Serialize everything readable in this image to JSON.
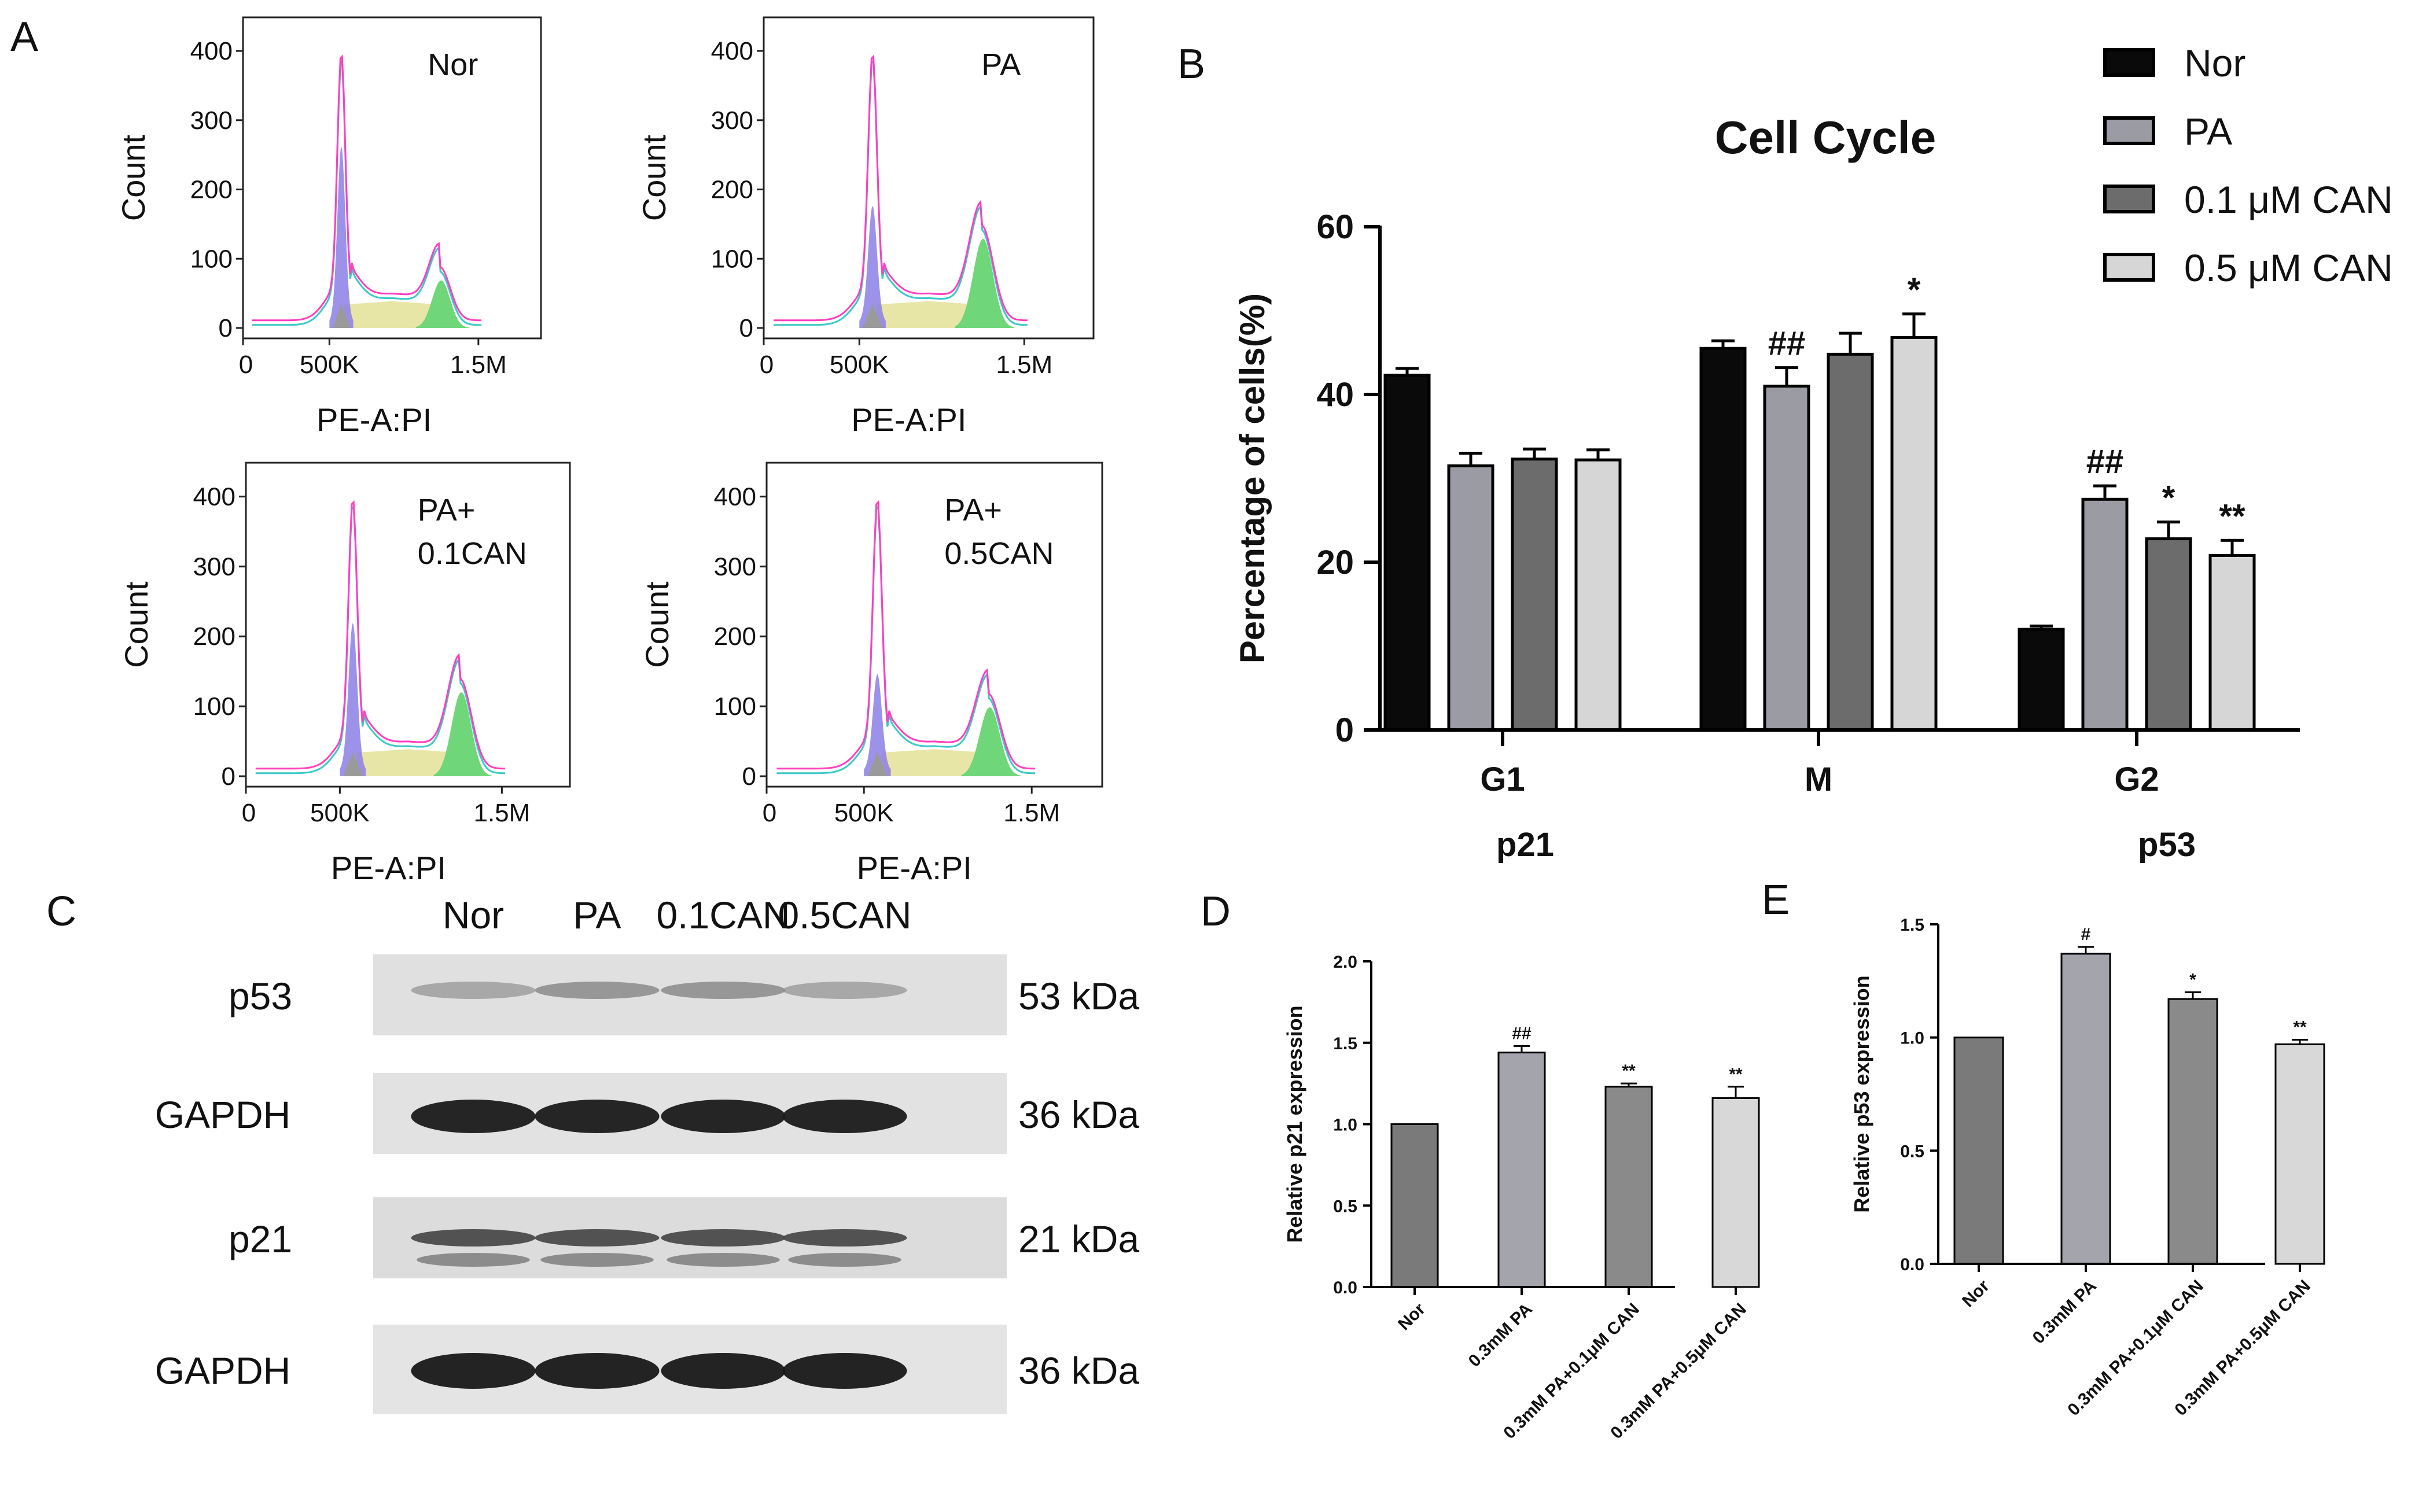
{
  "panel_letters": [
    "A",
    "B",
    "C",
    "D",
    "E"
  ],
  "flow_panels": {
    "ylabel": "Count",
    "xlabel": "PE-A:PI",
    "yticks": [
      "0",
      "100",
      "200",
      "300",
      "400"
    ],
    "xticks": [
      "0",
      "500K",
      "1.5M"
    ],
    "labels": [
      [
        "Nor"
      ],
      [
        "PA"
      ],
      [
        "PA+",
        "0.1CAN"
      ],
      [
        "PA+",
        "0.5CAN"
      ]
    ],
    "colors": {
      "outline_pink": "#ff3fbf",
      "outline_cyan": "#3cc8c8",
      "g1_fill": "#8c7fe6",
      "s_fill": "#e8e6a6",
      "g2_fill": "#6fd67a",
      "debris_fill": "#9a9a9a"
    }
  },
  "western_blot": {
    "lanes": [
      "Nor",
      "PA",
      "0.1CAN",
      "0.5CAN"
    ],
    "rows": [
      {
        "protein": "p53",
        "size": "53 kDa"
      },
      {
        "protein": "GAPDH",
        "size": "36 kDa"
      },
      {
        "protein": "p21",
        "size": "21 kDa"
      },
      {
        "protein": "GAPDH",
        "size": "36 kDa"
      }
    ]
  },
  "extra_labels": {
    "p21": "p21",
    "p53": "p53"
  },
  "chart_data": [
    {
      "type": "bar",
      "panel": "B",
      "title": "Cell Cycle",
      "ylabel": "Percentage of cells(%)",
      "ylim": [
        0,
        60
      ],
      "yticks": [
        0,
        20,
        40,
        60
      ],
      "categories": [
        "G1",
        "M",
        "G2"
      ],
      "legend_position": "top-right",
      "series": [
        {
          "name": "Nor",
          "color": "#0a0a0a",
          "values": [
            42.3,
            45.5,
            12.0
          ],
          "errors": [
            0.8,
            0.9,
            0.4
          ],
          "sig": [
            "",
            "",
            ""
          ]
        },
        {
          "name": "PA",
          "color": "#9b9ba3",
          "values": [
            31.5,
            41.0,
            27.5
          ],
          "errors": [
            1.5,
            2.2,
            1.6
          ],
          "sig": [
            "",
            "##",
            "##"
          ]
        },
        {
          "name": "0.1 μM CAN",
          "color": "#6c6c6c",
          "values": [
            32.3,
            44.8,
            22.8
          ],
          "errors": [
            1.2,
            2.5,
            2.0
          ],
          "sig": [
            "",
            "",
            "*"
          ]
        },
        {
          "name": "0.5 μM CAN",
          "color": "#d6d6d6",
          "values": [
            32.2,
            46.8,
            20.8
          ],
          "errors": [
            1.2,
            2.8,
            1.8
          ],
          "sig": [
            "",
            "*",
            "**"
          ]
        }
      ]
    },
    {
      "type": "bar",
      "panel": "D",
      "ylabel": "Relative p21 expression",
      "ylim": [
        0,
        2.0
      ],
      "yticks": [
        "0.0",
        "0.5",
        "1.0",
        "1.5",
        "2.0"
      ],
      "categories": [
        "Nor",
        "0.3mM PA",
        "0.3mM PA+0.1μM CAN",
        "0.3mM PA+0.5μM CAN"
      ],
      "values": [
        1.0,
        1.44,
        1.23,
        1.16
      ],
      "errors": [
        0.0,
        0.04,
        0.02,
        0.07
      ],
      "sig": [
        "",
        "##",
        "**",
        "**"
      ],
      "colors": [
        "#7a7a7a",
        "#a4a4ac",
        "#8a8a8a",
        "#d8d8d8"
      ]
    },
    {
      "type": "bar",
      "panel": "E",
      "ylabel": "Relative p53 expression",
      "ylim": [
        0,
        1.5
      ],
      "yticks": [
        "0.0",
        "0.5",
        "1.0",
        "1.5"
      ],
      "categories": [
        "Nor",
        "0.3mM PA",
        "0.3mM PA+0.1μM CAN",
        "0.3mM PA+0.5μM CAN"
      ],
      "values": [
        1.0,
        1.37,
        1.17,
        0.97
      ],
      "errors": [
        0.0,
        0.03,
        0.03,
        0.02
      ],
      "sig": [
        "",
        "#",
        "*",
        "**"
      ],
      "colors": [
        "#7a7a7a",
        "#a4a4ac",
        "#8a8a8a",
        "#d8d8d8"
      ]
    }
  ]
}
